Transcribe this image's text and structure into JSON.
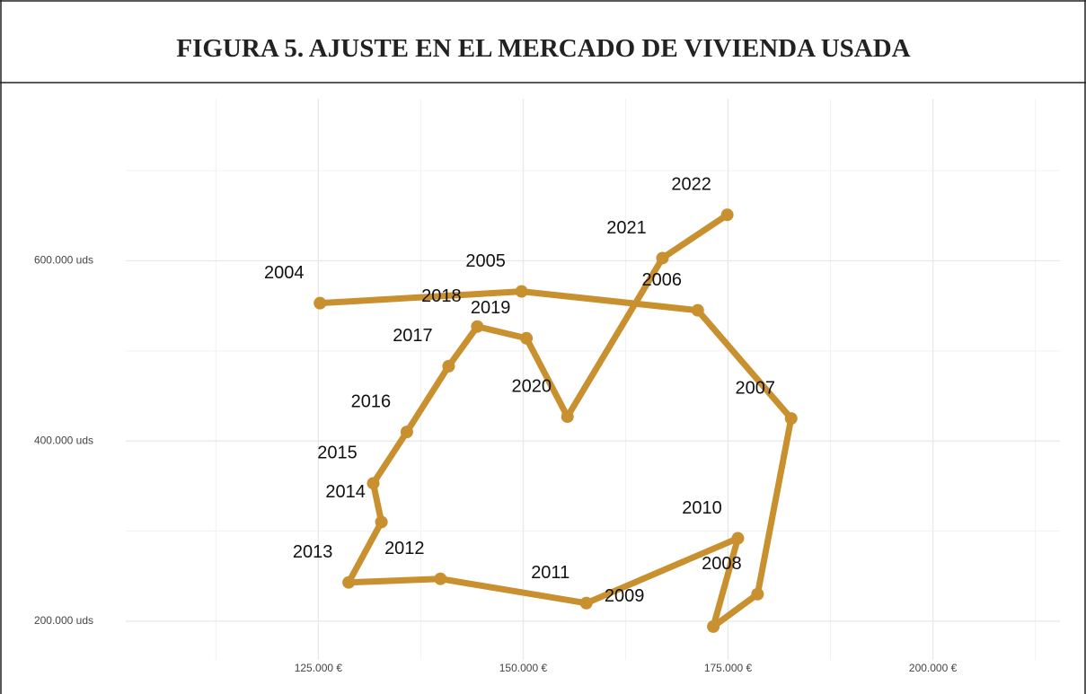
{
  "chart_data": {
    "type": "connected_scatter",
    "title": "FIGURA 5. AJUSTE EN EL MERCADO DE VIVIENDA USADA",
    "color": "#c8902e",
    "grid": true,
    "point_labels": [
      "2004",
      "2005",
      "2006",
      "2007",
      "2008",
      "2009",
      "2010",
      "2011",
      "2012",
      "2013",
      "2014",
      "2015",
      "2016",
      "2017",
      "2018",
      "2019",
      "2020",
      "2021",
      "2022"
    ],
    "x": [
      125200,
      149800,
      171300,
      182700,
      178600,
      173200,
      176200,
      157700,
      139900,
      128700,
      132700,
      131700,
      135800,
      140900,
      144400,
      150400,
      155400,
      167000,
      174900
    ],
    "values": [
      553000,
      566000,
      545000,
      425000,
      230000,
      194000,
      292000,
      220000,
      247000,
      243000,
      310000,
      353000,
      410000,
      483000,
      527000,
      514000,
      427000,
      603000,
      651000
    ],
    "xlim": [
      101500,
      215500
    ],
    "ylim": [
      157000,
      740000
    ],
    "xticks": [
      {
        "value": 125000,
        "label": "125.000 €"
      },
      {
        "value": 150000,
        "label": "150.000 €"
      },
      {
        "value": 175000,
        "label": "175.000 €"
      },
      {
        "value": 200000,
        "label": "200.000 €"
      }
    ],
    "yticks": [
      {
        "value": 200000,
        "label": "200.000 uds"
      },
      {
        "value": 400000,
        "label": "400.000 uds"
      },
      {
        "value": 600000,
        "label": "600.000 uds"
      }
    ],
    "x_minor_grid": [
      112500,
      137500,
      162500,
      187500,
      212500
    ],
    "y_minor_grid": [
      300000,
      500000,
      700000
    ]
  }
}
